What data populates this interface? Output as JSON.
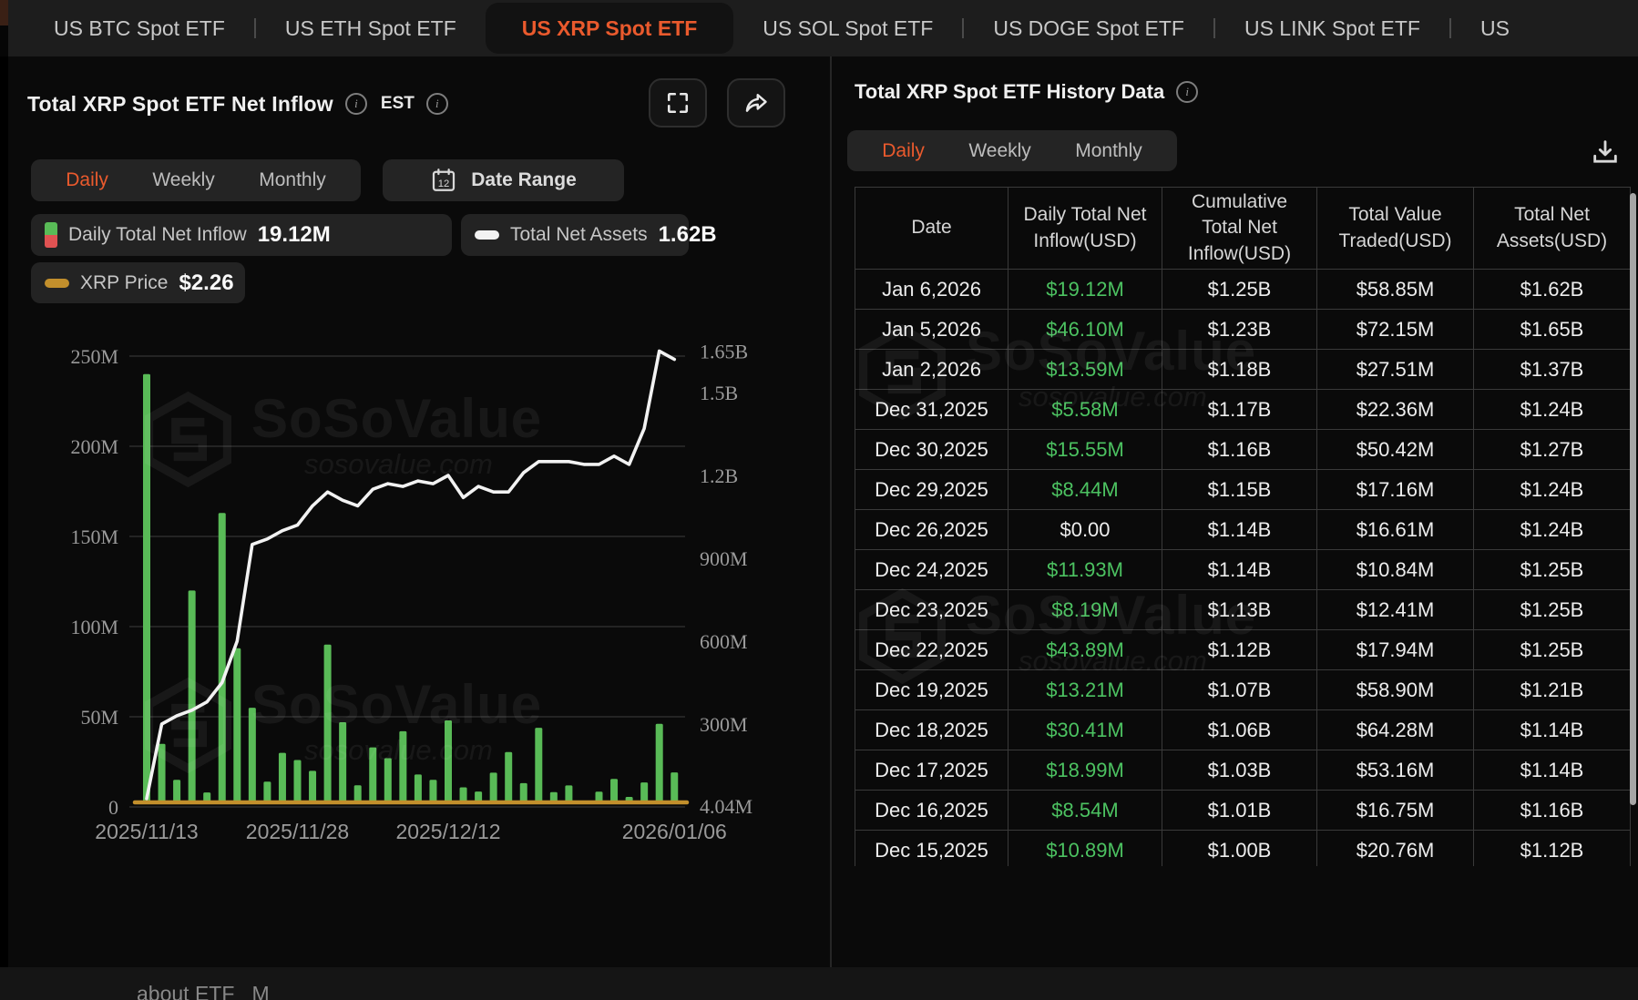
{
  "colors": {
    "accent_orange": "#EA5A2D",
    "bar_green": "#59BB57",
    "table_green": "#4CC261",
    "assets_line_white": "#F2F2F2",
    "price_line_gold": "#C28F2C",
    "legend_red": "#E05252",
    "gridline": "#2c2c2c",
    "axis_text": "#9a9a9a"
  },
  "top_tabs": {
    "items": [
      {
        "label": "US BTC Spot ETF",
        "active": false
      },
      {
        "label": "US ETH Spot ETF",
        "active": false
      },
      {
        "label": "US XRP Spot ETF",
        "active": true
      },
      {
        "label": "US SOL Spot ETF",
        "active": false
      },
      {
        "label": "US DOGE Spot ETF",
        "active": false
      },
      {
        "label": "US LINK Spot ETF",
        "active": false
      },
      {
        "label": "US",
        "active": false,
        "truncated": true
      }
    ]
  },
  "chart_panel": {
    "title": "Total XRP Spot ETF Net Inflow",
    "est_label": "EST",
    "tabs": {
      "daily": "Daily",
      "weekly": "Weekly",
      "monthly": "Monthly",
      "active": "Daily"
    },
    "date_range_label": "Date Range",
    "calendar_day": "12",
    "legend": {
      "inflow_label": "Daily Total Net Inflow",
      "inflow_value": "19.12M",
      "assets_label": "Total Net Assets",
      "assets_value": "1.62B",
      "price_label": "XRP Price",
      "price_value": "$2.26"
    }
  },
  "watermark": {
    "brand": "SoSoValue",
    "domain": "sosovalue.com"
  },
  "chart_data": {
    "type": "bar+line",
    "title": "Total XRP Spot ETF Net Inflow",
    "x_axis_labels": [
      {
        "label": "2025/11/13",
        "day_index": 0
      },
      {
        "label": "2025/11/28",
        "day_index": 10
      },
      {
        "label": "2025/12/12",
        "day_index": 20
      },
      {
        "label": "2026/01/06",
        "day_index": 35
      }
    ],
    "left_axis": {
      "title": "Daily Net Inflow (USD)",
      "ticks": [
        {
          "label": "250M",
          "value_m": 250
        },
        {
          "label": "200M",
          "value_m": 200
        },
        {
          "label": "150M",
          "value_m": 150
        },
        {
          "label": "100M",
          "value_m": 100
        },
        {
          "label": "50M",
          "value_m": 50
        },
        {
          "label": "0",
          "value_m": 0
        }
      ]
    },
    "right_axis": {
      "title": "Total Net Assets (USD)",
      "ticks": [
        {
          "label": "1.65B",
          "value_b": 1.65
        },
        {
          "label": "1.5B",
          "value_b": 1.5
        },
        {
          "label": "1.2B",
          "value_b": 1.2
        },
        {
          "label": "900M",
          "value_b": 0.9
        },
        {
          "label": "600M",
          "value_b": 0.6
        },
        {
          "label": "300M",
          "value_b": 0.3
        },
        {
          "label": "4.04M",
          "value_b": 0.00404
        }
      ]
    },
    "series": [
      {
        "name": "Daily Total Net Inflow",
        "type": "bar",
        "unit": "USD millions",
        "values": [
          240,
          35,
          15,
          120,
          8,
          163,
          88,
          55,
          14,
          30,
          26,
          20,
          90,
          47,
          12,
          33,
          27,
          42,
          18,
          15,
          48,
          10.89,
          8.54,
          18.99,
          30.41,
          13.21,
          43.89,
          8.19,
          11.93,
          0,
          8.44,
          15.55,
          5.58,
          13.59,
          46.1,
          19.12
        ]
      },
      {
        "name": "Total Net Assets",
        "type": "line",
        "unit": "USD billions",
        "values": [
          0.03,
          0.3,
          0.33,
          0.35,
          0.38,
          0.45,
          0.6,
          0.95,
          0.97,
          1.0,
          1.02,
          1.09,
          1.14,
          1.11,
          1.09,
          1.15,
          1.17,
          1.16,
          1.18,
          1.17,
          1.2,
          1.12,
          1.16,
          1.14,
          1.14,
          1.21,
          1.25,
          1.25,
          1.25,
          1.24,
          1.24,
          1.27,
          1.24,
          1.37,
          1.65,
          1.62
        ]
      },
      {
        "name": "XRP Price",
        "type": "line",
        "unit": "USD",
        "flat_value": 2.26,
        "note": "renders as flat gold line along the baseline"
      }
    ],
    "grid": true,
    "legend_position": "top-left chips"
  },
  "table_panel": {
    "title": "Total XRP Spot ETF History Data",
    "tabs": {
      "daily": "Daily",
      "weekly": "Weekly",
      "monthly": "Monthly",
      "active": "Daily"
    },
    "columns": [
      "Date",
      "Daily Total Net Inflow(USD)",
      "Cumulative Total Net Inflow(USD)",
      "Total Value Traded(USD)",
      "Total Net Assets(USD)"
    ],
    "rows": [
      {
        "date": "Jan 6,2026",
        "inflow": "$19.12M",
        "cumulative": "$1.25B",
        "traded": "$58.85M",
        "assets": "$1.62B"
      },
      {
        "date": "Jan 5,2026",
        "inflow": "$46.10M",
        "cumulative": "$1.23B",
        "traded": "$72.15M",
        "assets": "$1.65B"
      },
      {
        "date": "Jan 2,2026",
        "inflow": "$13.59M",
        "cumulative": "$1.18B",
        "traded": "$27.51M",
        "assets": "$1.37B"
      },
      {
        "date": "Dec 31,2025",
        "inflow": "$5.58M",
        "cumulative": "$1.17B",
        "traded": "$22.36M",
        "assets": "$1.24B"
      },
      {
        "date": "Dec 30,2025",
        "inflow": "$15.55M",
        "cumulative": "$1.16B",
        "traded": "$50.42M",
        "assets": "$1.27B"
      },
      {
        "date": "Dec 29,2025",
        "inflow": "$8.44M",
        "cumulative": "$1.15B",
        "traded": "$17.16M",
        "assets": "$1.24B"
      },
      {
        "date": "Dec 26,2025",
        "inflow": "$0.00",
        "cumulative": "$1.14B",
        "traded": "$16.61M",
        "assets": "$1.24B"
      },
      {
        "date": "Dec 24,2025",
        "inflow": "$11.93M",
        "cumulative": "$1.14B",
        "traded": "$10.84M",
        "assets": "$1.25B"
      },
      {
        "date": "Dec 23,2025",
        "inflow": "$8.19M",
        "cumulative": "$1.13B",
        "traded": "$12.41M",
        "assets": "$1.25B"
      },
      {
        "date": "Dec 22,2025",
        "inflow": "$43.89M",
        "cumulative": "$1.12B",
        "traded": "$17.94M",
        "assets": "$1.25B"
      },
      {
        "date": "Dec 19,2025",
        "inflow": "$13.21M",
        "cumulative": "$1.07B",
        "traded": "$58.90M",
        "assets": "$1.21B"
      },
      {
        "date": "Dec 18,2025",
        "inflow": "$30.41M",
        "cumulative": "$1.06B",
        "traded": "$64.28M",
        "assets": "$1.14B"
      },
      {
        "date": "Dec 17,2025",
        "inflow": "$18.99M",
        "cumulative": "$1.03B",
        "traded": "$53.16M",
        "assets": "$1.14B"
      },
      {
        "date": "Dec 16,2025",
        "inflow": "$8.54M",
        "cumulative": "$1.01B",
        "traded": "$16.75M",
        "assets": "$1.16B"
      },
      {
        "date": "Dec 15,2025",
        "inflow": "$10.89M",
        "cumulative": "$1.00B",
        "traded": "$20.76M",
        "assets": "$1.12B"
      }
    ]
  },
  "footer": {
    "partial_text": "about ETF   M"
  }
}
